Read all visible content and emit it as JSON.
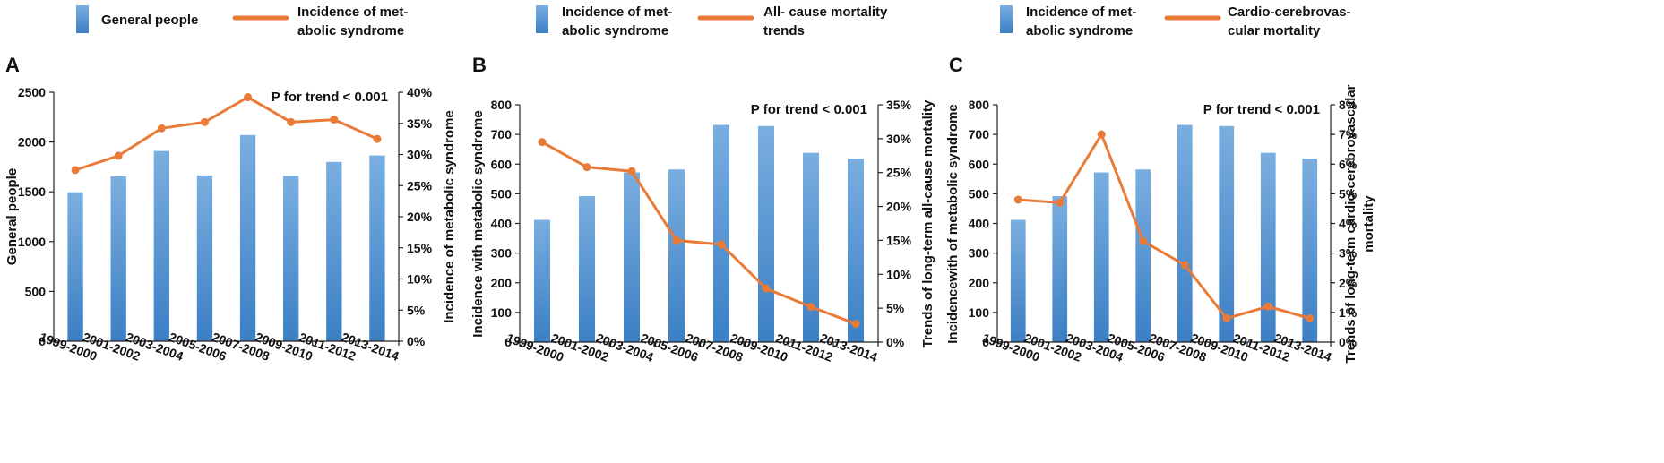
{
  "colors": {
    "bar_top": "#7aaee0",
    "bar_bottom": "#3b7fc4",
    "line": "#ea7a37",
    "axis": "#222222"
  },
  "chart_data": [
    {
      "panel_label": "A",
      "type": "bar+line",
      "legend": {
        "bar": "General people",
        "line": "Incidence of met-\nabolic syndrome"
      },
      "annotation": "P for trend < 0.001",
      "categories": [
        "1999-2000",
        "2001-2002",
        "2003-2004",
        "2005-2006",
        "2007-2008",
        "2009-2010",
        "2011-2012",
        "2013-2014"
      ],
      "ylabel_left": "General people",
      "ylabel_right": "Incidence of metabolic syndrome",
      "y_left": {
        "min": 0,
        "max": 2500,
        "ticks": [
          0,
          500,
          1000,
          1500,
          2000,
          2500
        ],
        "tick_labels": [
          "0",
          "500",
          "1000",
          "1500",
          "2000",
          "2500"
        ]
      },
      "y_right": {
        "min": 0,
        "max": 40,
        "ticks": [
          0,
          5,
          10,
          15,
          20,
          25,
          30,
          35,
          40
        ],
        "tick_labels": [
          "0%",
          "5%",
          "10%",
          "15%",
          "20%",
          "25%",
          "30%",
          "35%",
          "40%"
        ]
      },
      "series": [
        {
          "name": "General people",
          "type": "bar",
          "axis": "left",
          "values": [
            1495,
            1655,
            1910,
            1665,
            2070,
            1660,
            1800,
            1865
          ]
        },
        {
          "name": "Incidence of metabolic syndrome",
          "type": "line",
          "axis": "right",
          "values": [
            27.5,
            29.8,
            34.2,
            35.2,
            39.2,
            35.2,
            35.6,
            32.5
          ]
        }
      ]
    },
    {
      "panel_label": "B",
      "type": "bar+line",
      "legend": {
        "bar": "Incidence of met-\nabolic syndrome",
        "line": "All- cause mortality\ntrends"
      },
      "annotation": "P for trend < 0.001",
      "categories": [
        "1999-2000",
        "2001-2002",
        "2003-2004",
        "2005-2006",
        "2007-2008",
        "2009-2010",
        "2011-2012",
        "2013-2014"
      ],
      "ylabel_left": "Incidence with metabolic syndrome",
      "ylabel_right": "Trends of long-term all-cause mortality",
      "y_left": {
        "min": 0,
        "max": 800,
        "ticks": [
          0,
          100,
          200,
          300,
          400,
          500,
          600,
          700,
          800
        ],
        "tick_labels": [
          "0",
          "100",
          "200",
          "300",
          "400",
          "500",
          "600",
          "700",
          "800"
        ]
      },
      "y_right": {
        "min": 0,
        "max": 35,
        "ticks": [
          0,
          5,
          10,
          15,
          20,
          25,
          30,
          35
        ],
        "tick_labels": [
          "0%",
          "5%",
          "10%",
          "15%",
          "20%",
          "25%",
          "30%",
          "35%"
        ]
      },
      "series": [
        {
          "name": "Incidence of metabolic syndrome",
          "type": "bar",
          "axis": "left",
          "values": [
            412,
            492,
            572,
            582,
            732,
            728,
            638,
            618
          ]
        },
        {
          "name": "All- cause mortality trends",
          "type": "line",
          "axis": "right",
          "values": [
            29.5,
            25.8,
            25.2,
            15.0,
            14.4,
            7.9,
            5.2,
            2.7
          ]
        }
      ]
    },
    {
      "panel_label": "C",
      "type": "bar+line",
      "legend": {
        "bar": "Incidence of met-\nabolic syndrome",
        "line": "Cardio-cerebrovas-\ncular mortality"
      },
      "annotation": "P for trend < 0.001",
      "categories": [
        "1999-2000",
        "2001-2002",
        "2003-2004",
        "2005-2006",
        "2007-2008",
        "2009-2010",
        "2011-2012",
        "2013-2014"
      ],
      "ylabel_left": "Incidencewith of metabolic syndrome",
      "ylabel_right": "Trends of long-term cardio-cerebrovascular\nmortality",
      "y_left": {
        "min": 0,
        "max": 800,
        "ticks": [
          0,
          100,
          200,
          300,
          400,
          500,
          600,
          700,
          800
        ],
        "tick_labels": [
          "0",
          "100",
          "200",
          "300",
          "400",
          "500",
          "600",
          "700",
          "800"
        ]
      },
      "y_right": {
        "min": 0,
        "max": 8,
        "ticks": [
          0,
          1,
          2,
          3,
          4,
          5,
          6,
          7,
          8
        ],
        "tick_labels": [
          "0%",
          "1%",
          "2%",
          "3%",
          "4%",
          "5%",
          "6%",
          "7%",
          "8%"
        ]
      },
      "series": [
        {
          "name": "Incidence of metabolic syndrome",
          "type": "bar",
          "axis": "left",
          "values": [
            412,
            492,
            572,
            582,
            732,
            728,
            638,
            618
          ]
        },
        {
          "name": "Cardio-cerebrovascular mortality",
          "type": "line",
          "axis": "right",
          "values": [
            4.8,
            4.7,
            7.0,
            3.4,
            2.6,
            0.8,
            1.2,
            0.8
          ]
        }
      ]
    }
  ]
}
